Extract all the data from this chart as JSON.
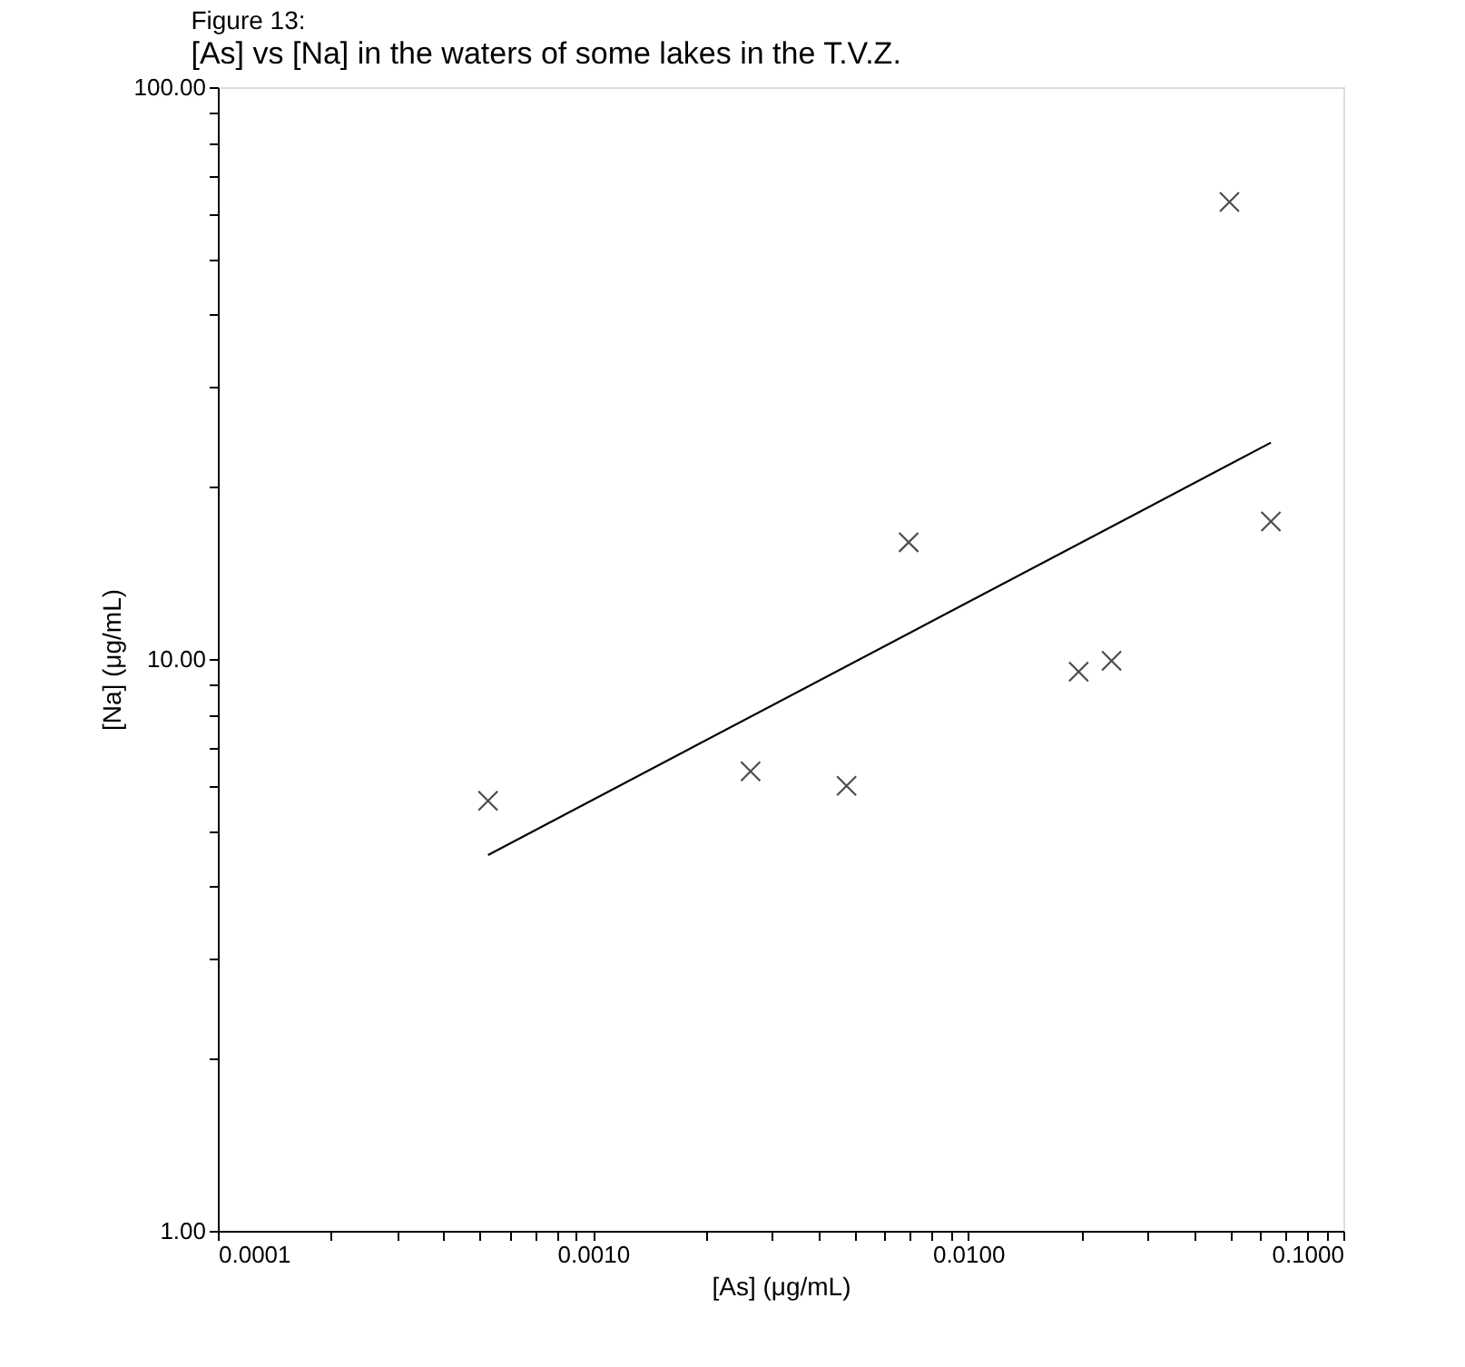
{
  "chart_data": {
    "type": "scatter",
    "title": "Figure 13:",
    "subtitle": "[As] vs [Na] in the waters of some lakes in the T.V.Z.",
    "xlabel": "[As] (μg/mL)",
    "ylabel": "[Na] (μg/mL)",
    "log": "xy",
    "grid": false,
    "marker": "cross",
    "xlim": [
      0.0001,
      0.1
    ],
    "ylim": [
      1,
      100
    ],
    "xticks": [
      {
        "value": 0.0001,
        "label": "0.0001"
      },
      {
        "value": 0.0002,
        "label": null
      },
      {
        "value": 0.0003,
        "label": null
      },
      {
        "value": 0.0004,
        "label": null
      },
      {
        "value": 0.0005,
        "label": null
      },
      {
        "value": 0.0006,
        "label": null
      },
      {
        "value": 0.0007,
        "label": null
      },
      {
        "value": 0.0008,
        "label": null
      },
      {
        "value": 0.0009,
        "label": null
      },
      {
        "value": 0.001,
        "label": "0.0010"
      },
      {
        "value": 0.002,
        "label": null
      },
      {
        "value": 0.003,
        "label": null
      },
      {
        "value": 0.004,
        "label": null
      },
      {
        "value": 0.005,
        "label": null
      },
      {
        "value": 0.006,
        "label": null
      },
      {
        "value": 0.007,
        "label": null
      },
      {
        "value": 0.008,
        "label": null
      },
      {
        "value": 0.009,
        "label": null
      },
      {
        "value": 0.01,
        "label": "0.0100"
      },
      {
        "value": 0.02,
        "label": null
      },
      {
        "value": 0.03,
        "label": null
      },
      {
        "value": 0.04,
        "label": null
      },
      {
        "value": 0.05,
        "label": null
      },
      {
        "value": 0.06,
        "label": null
      },
      {
        "value": 0.07,
        "label": null
      },
      {
        "value": 0.08,
        "label": null
      },
      {
        "value": 0.09,
        "label": null
      },
      {
        "value": 0.1,
        "label": "0.1000"
      }
    ],
    "yticks": [
      {
        "value": 1,
        "label": "1.00"
      },
      {
        "value": 2,
        "label": null
      },
      {
        "value": 3,
        "label": null
      },
      {
        "value": 4,
        "label": null
      },
      {
        "value": 5,
        "label": null
      },
      {
        "value": 6,
        "label": null
      },
      {
        "value": 7,
        "label": null
      },
      {
        "value": 8,
        "label": null
      },
      {
        "value": 9,
        "label": null
      },
      {
        "value": 10,
        "label": "10.00"
      },
      {
        "value": 20,
        "label": null
      },
      {
        "value": 30,
        "label": null
      },
      {
        "value": 40,
        "label": null
      },
      {
        "value": 50,
        "label": null
      },
      {
        "value": 60,
        "label": null
      },
      {
        "value": 70,
        "label": null
      },
      {
        "value": 80,
        "label": null
      },
      {
        "value": 90,
        "label": null
      },
      {
        "value": 100,
        "label": "100.00"
      }
    ],
    "series": [
      {
        "color": "#000000",
        "x": [
          0.000525,
          0.00263,
          0.00474,
          0.00694,
          0.0197,
          0.0241,
          0.0497,
          0.0641
        ],
        "values": [
          5.65,
          6.36,
          6.0,
          16.0,
          9.5,
          9.93,
          63,
          17.4
        ]
      },
      {
        "type": "line",
        "color": "#000000",
        "line_style": "solid",
        "marker": "none",
        "x": [
          0.000525,
          0.0641
        ],
        "values": [
          4.54,
          23.9
        ]
      }
    ]
  }
}
